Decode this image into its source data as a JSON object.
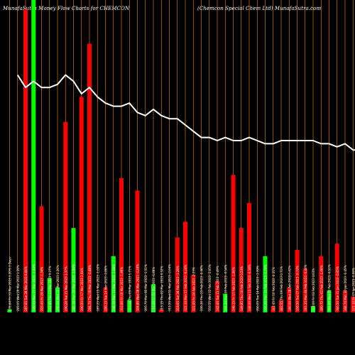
{
  "chart_data": {
    "type": "bar",
    "title": "MunafaSutra  Money Flow  Charts for CHEMCON",
    "subtitle": "(Chemcon  Special Chem Ltd) MunafaSutra.com",
    "colors": {
      "background": "#000000",
      "up": "#00ff00",
      "down": "#ff0000",
      "gridline": "#ff8c00",
      "line": "#ffffff",
      "text": "#ffffff"
    },
    "grid": true,
    "ylim": [
      0,
      100
    ],
    "categories": [
      "278.64 Fri 31 Mar 2023 3.20% 3 Days",
      "283.05 Wed 29 Mar 2023 1.39%",
      "287.05 Tue 28 Mar 2023 0.66%",
      "289.55 Mon 27 Mar 2023 -1.04%",
      "293.45 Fri 24 Mar 2023 -1.34%",
      "291.05 Thu 23 Mar 2023 0.27%",
      "290.50 Wed 22 Mar 2023 2.26%",
      "290.20 Tue 21 Mar 2023 1.37%",
      "285.10 Mon 20 Mar 2023 -1.86%",
      "290.50 Fri 17 Mar 2023 2.04%",
      "284.70 Thu 16 Mar 2023 -0.88%",
      "287.25 Wed 15 Mar 2023 -1.00%",
      "290.15 Tue 14 Mar 2023 -2.86%",
      "298.70 Mon 13 Mar 2023 -1.68%",
      "303.80 Fri 10 Mar 2023 -1.99%",
      "310.00 Thu 09 Mar 2023 1.71%",
      "304.80 Wed 08 Mar 2023 -0.29%",
      "305.70 Mon 06 Mar 2023 -1.51%",
      "310.40 Fri 03 Mar 2023 -0.88%",
      "313.15 Thu 02 Mar 2023 0.52%",
      "311.55 Wed 01 Mar 2023 -2.04%",
      "318.05 Tue 28 Feb 2023 -1.26%",
      "322.10 Mon 27 Feb 2023 -0.26%",
      "322.95 Fri 24 Feb 2023 -2.23%",
      "330.30 Thu 23 Feb 2023 -0.98%",
      "333.55 Wed 22 Feb 2023 -2.65%",
      "342.60 Tue 21 Feb 2023 -0.49%",
      "344.30 Mon 20 Feb 2023 -0.54%",
      "346.15 Fri 17 Feb 2023 -1.06%",
      "349.85 Thu 16 Feb 2023 0.53%",
      "348.00 Wed 15 Feb 2023 -0.58%",
      "350.05 Tue 14 Feb 2023 -1.39%",
      "355.00 Mon 13 Feb 2023 -1.79%",
      "361.45 Fri 10 Feb 2023 -0.31%",
      "362.55 Thu 09 Feb 2023 0.71%",
      "360.00 Wed 08 Feb 2023 0.42%",
      "358.50 Tue 07 Feb 2023 -0.79%",
      "361.35 Mon 06 Feb 2023 -0.46%",
      "363.00 Fri 03 Feb 2023 0.63%",
      "360.75 Thu 02 Feb 2023 -1.06%",
      "364.60 Wed 01 Feb 2023 -0.51%",
      "366.50 Tue 31 Jan 2023 -0.05%",
      "366.70 Mon 30 Jan 2023 -1.45%",
      "372.10 Fri 27 Jan 2023 -0.99%",
      "375.80 Wed 25 Jan 2023 -0.84%",
      "379.00 Tue 24 Jan 2023 0.93%"
    ],
    "series": [
      {
        "type": "bar",
        "values": [
          1,
          0,
          97,
          100,
          34,
          11,
          8,
          61,
          27,
          69,
          86,
          0,
          8,
          18,
          43,
          4,
          39,
          0,
          9,
          1,
          0,
          24,
          29,
          12,
          0,
          0,
          10,
          6,
          44,
          27,
          35,
          0,
          18,
          2,
          4,
          8,
          20,
          14,
          2,
          18,
          7,
          22,
          7,
          5,
          28,
          4
        ],
        "directions": [
          "up",
          "down",
          "down",
          "up",
          "down",
          "up",
          "up",
          "down",
          "up",
          "down",
          "down",
          "up",
          "down",
          "up",
          "down",
          "up",
          "down",
          "down",
          "up",
          "down",
          "up",
          "down",
          "down",
          "down",
          "up",
          "down",
          "down",
          "up",
          "down",
          "down",
          "down",
          "up",
          "up",
          "down",
          "down",
          "down",
          "down",
          "down",
          "up",
          "down",
          "up",
          "down",
          "down",
          "down",
          "up",
          "down"
        ]
      },
      {
        "type": "line",
        "values": [
          null,
          76,
          72,
          74,
          72,
          72,
          73,
          76,
          74,
          70,
          72,
          69,
          67,
          66,
          66,
          67,
          64,
          63,
          65,
          63,
          62,
          62,
          60,
          58,
          56,
          56,
          55,
          56,
          55,
          55,
          56,
          55,
          54,
          54,
          55,
          55,
          55,
          55,
          55,
          54,
          54,
          53,
          54,
          52,
          52,
          54
        ]
      }
    ]
  }
}
